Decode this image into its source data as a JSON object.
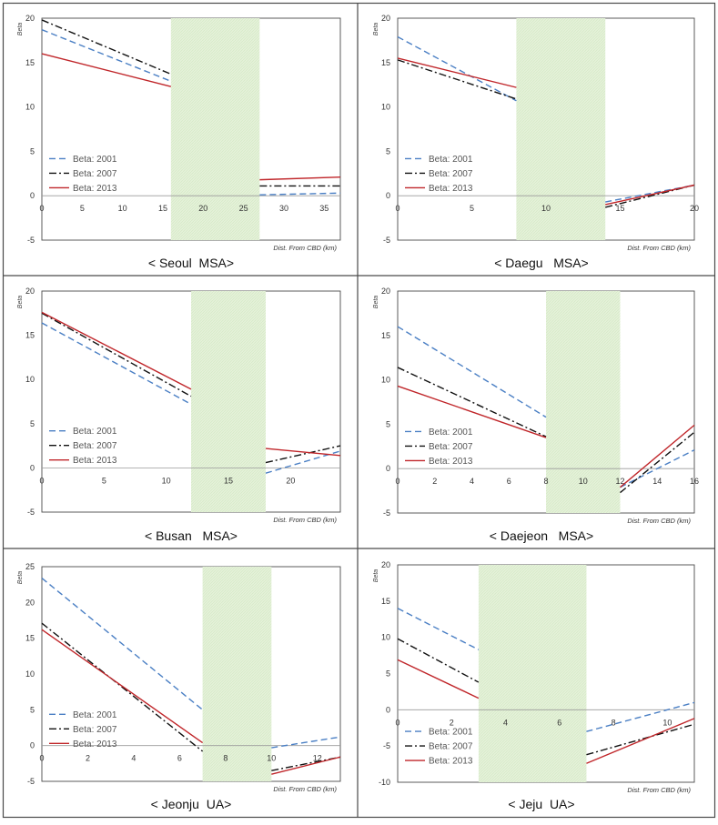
{
  "colors": {
    "beta_2001": "#4a7fc4",
    "beta_2007": "#111111",
    "beta_2013": "#c0262a",
    "shade": "#e4f1d9",
    "frame": "#4a4a4a",
    "axis": "#9a9a9a"
  },
  "chart_data": [
    {
      "type": "line",
      "caption": "< Seoul  MSA>",
      "ylabel": "Beta",
      "xlabel": "Dist. From CBD (km)",
      "xlim": [
        0,
        37
      ],
      "ylim": [
        -5,
        20
      ],
      "xticks": [
        0,
        5,
        10,
        15,
        20,
        25,
        30,
        35
      ],
      "yticks": [
        -5,
        0,
        5,
        10,
        15,
        20
      ],
      "shade": [
        16,
        27
      ],
      "legend": [
        "Beta: 2001",
        "Beta: 2007",
        "Beta: 2013"
      ],
      "series": [
        {
          "name": "Beta: 2001",
          "segments": [
            [
              [
                0,
                18.7
              ],
              [
                16,
                12.9
              ]
            ],
            [
              [
                27,
                0.1
              ],
              [
                37,
                0.3
              ]
            ]
          ]
        },
        {
          "name": "Beta: 2007",
          "segments": [
            [
              [
                0,
                19.8
              ],
              [
                16,
                13.7
              ]
            ],
            [
              [
                27,
                1.1
              ],
              [
                37,
                1.1
              ]
            ]
          ]
        },
        {
          "name": "Beta: 2013",
          "segments": [
            [
              [
                0,
                16.0
              ],
              [
                16,
                12.3
              ]
            ],
            [
              [
                27,
                1.8
              ],
              [
                37,
                2.1
              ]
            ]
          ]
        }
      ]
    },
    {
      "type": "line",
      "caption": "< Daegu   MSA>",
      "ylabel": "Beta",
      "xlabel": "Dist. From CBD (km)",
      "xlim": [
        0,
        20
      ],
      "ylim": [
        -5,
        20
      ],
      "xticks": [
        0,
        5,
        10,
        15,
        20
      ],
      "yticks": [
        -5,
        0,
        5,
        10,
        15,
        20
      ],
      "shade": [
        8,
        14
      ],
      "legend": [
        "Beta: 2001",
        "Beta: 2007",
        "Beta: 2013"
      ],
      "series": [
        {
          "name": "Beta: 2001",
          "segments": [
            [
              [
                0,
                17.9
              ],
              [
                8,
                10.7
              ]
            ],
            [
              [
                14,
                -0.7
              ],
              [
                20,
                1.2
              ]
            ]
          ]
        },
        {
          "name": "Beta: 2007",
          "segments": [
            [
              [
                0,
                15.3
              ],
              [
                8,
                10.9
              ]
            ],
            [
              [
                14,
                -1.3
              ],
              [
                20,
                1.2
              ]
            ]
          ]
        },
        {
          "name": "Beta: 2013",
          "segments": [
            [
              [
                0,
                15.5
              ],
              [
                8,
                12.2
              ]
            ],
            [
              [
                14,
                -1.0
              ],
              [
                20,
                1.2
              ]
            ]
          ]
        }
      ]
    },
    {
      "type": "line",
      "caption": "< Busan   MSA>",
      "ylabel": "Beta",
      "xlabel": "Dist. From CBD (km)",
      "xlim": [
        0,
        24
      ],
      "ylim": [
        -5,
        20
      ],
      "xticks": [
        0,
        5,
        10,
        15,
        20
      ],
      "yticks": [
        -5,
        0,
        5,
        10,
        15,
        20
      ],
      "shade": [
        12,
        18
      ],
      "legend": [
        "Beta: 2001",
        "Beta: 2007",
        "Beta: 2013"
      ],
      "series": [
        {
          "name": "Beta: 2001",
          "segments": [
            [
              [
                0,
                16.4
              ],
              [
                12,
                7.2
              ]
            ],
            [
              [
                18,
                -0.6
              ],
              [
                24,
                1.9
              ]
            ]
          ]
        },
        {
          "name": "Beta: 2007",
          "segments": [
            [
              [
                0,
                17.5
              ],
              [
                12,
                8.1
              ]
            ],
            [
              [
                18,
                0.6
              ],
              [
                24,
                2.5
              ]
            ]
          ]
        },
        {
          "name": "Beta: 2013",
          "segments": [
            [
              [
                0,
                17.6
              ],
              [
                12,
                8.9
              ]
            ],
            [
              [
                18,
                2.2
              ],
              [
                24,
                1.4
              ]
            ]
          ]
        }
      ]
    },
    {
      "type": "line",
      "caption": "< Daejeon   MSA>",
      "ylabel": "Beta",
      "xlabel": "Dist. From CBD (km)",
      "xlim": [
        0,
        16
      ],
      "ylim": [
        -5,
        20
      ],
      "xticks": [
        0,
        2,
        4,
        6,
        8,
        10,
        12,
        14,
        16
      ],
      "yticks": [
        -5,
        0,
        5,
        10,
        15,
        20
      ],
      "shade": [
        8,
        12
      ],
      "legend": [
        "Beta: 2001",
        "Beta: 2007",
        "Beta: 2013"
      ],
      "series": [
        {
          "name": "Beta: 2001",
          "segments": [
            [
              [
                0,
                16.0
              ],
              [
                8,
                5.8
              ]
            ],
            [
              [
                12,
                -2.1
              ],
              [
                16,
                2.1
              ]
            ]
          ]
        },
        {
          "name": "Beta: 2007",
          "segments": [
            [
              [
                0,
                11.4
              ],
              [
                8,
                3.6
              ]
            ],
            [
              [
                12,
                -2.7
              ],
              [
                16,
                4.1
              ]
            ]
          ]
        },
        {
          "name": "Beta: 2013",
          "segments": [
            [
              [
                0,
                9.3
              ],
              [
                8,
                3.5
              ]
            ],
            [
              [
                12,
                -2.1
              ],
              [
                16,
                4.9
              ]
            ]
          ]
        }
      ]
    },
    {
      "type": "line",
      "caption": "< Jeonju  UA>",
      "ylabel": "Beta",
      "xlabel": "Dist. From CBD (km)",
      "xlim": [
        0,
        13
      ],
      "ylim": [
        -5,
        25
      ],
      "xticks": [
        0,
        2,
        4,
        6,
        8,
        10,
        12
      ],
      "yticks": [
        -5,
        0,
        5,
        10,
        15,
        20,
        25
      ],
      "shade": [
        7,
        10
      ],
      "legend": [
        "Beta: 2001",
        "Beta: 2007",
        "Beta: 2013"
      ],
      "series": [
        {
          "name": "Beta: 2001",
          "segments": [
            [
              [
                0,
                23.4
              ],
              [
                7,
                5.0
              ]
            ],
            [
              [
                10,
                -0.3
              ],
              [
                13,
                1.2
              ]
            ]
          ]
        },
        {
          "name": "Beta: 2007",
          "segments": [
            [
              [
                0,
                17.1
              ],
              [
                7,
                -0.8
              ]
            ],
            [
              [
                10,
                -3.5
              ],
              [
                13,
                -1.6
              ]
            ]
          ]
        },
        {
          "name": "Beta: 2013",
          "segments": [
            [
              [
                0,
                16.2
              ],
              [
                7,
                0.4
              ]
            ],
            [
              [
                10,
                -4.0
              ],
              [
                13,
                -1.6
              ]
            ]
          ]
        }
      ]
    },
    {
      "type": "line",
      "caption": "< Jeju  UA>",
      "ylabel": "Beta",
      "xlabel": "Dist. From CBD (km)",
      "xlim": [
        0,
        11
      ],
      "ylim": [
        -10,
        20
      ],
      "xticks": [
        0,
        2,
        4,
        6,
        8,
        10
      ],
      "yticks": [
        -10,
        -5,
        0,
        5,
        10,
        15,
        20
      ],
      "shade": [
        3,
        7
      ],
      "legend": [
        "Beta: 2001",
        "Beta: 2007",
        "Beta: 2013"
      ],
      "series": [
        {
          "name": "Beta: 2001",
          "segments": [
            [
              [
                0,
                14.0
              ],
              [
                3,
                8.3
              ]
            ],
            [
              [
                7,
                -3.0
              ],
              [
                11,
                1.0
              ]
            ]
          ]
        },
        {
          "name": "Beta: 2007",
          "segments": [
            [
              [
                0,
                9.8
              ],
              [
                3,
                3.8
              ]
            ],
            [
              [
                7,
                -6.2
              ],
              [
                11,
                -2.0
              ]
            ]
          ]
        },
        {
          "name": "Beta: 2013",
          "segments": [
            [
              [
                0,
                6.9
              ],
              [
                3,
                1.6
              ]
            ],
            [
              [
                7,
                -7.4
              ],
              [
                11,
                -1.2
              ]
            ]
          ]
        }
      ]
    }
  ]
}
